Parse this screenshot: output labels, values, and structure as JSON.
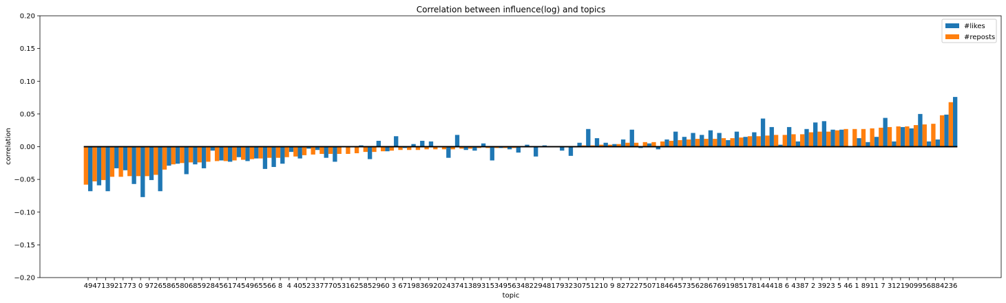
{
  "chart_data": {
    "type": "bar",
    "title": "Correlation between influence(log) and topics",
    "xlabel": "topic",
    "ylabel": "correlation",
    "ylim": [
      -0.2,
      0.2
    ],
    "yticks": [
      "0.20",
      "0.15",
      "0.10",
      "0.05",
      "0.00",
      "−0.05",
      "−0.10",
      "−0.15",
      "−0.20"
    ],
    "ytick_values": [
      0.2,
      0.15,
      0.1,
      0.05,
      0.0,
      -0.05,
      -0.1,
      -0.15,
      -0.2
    ],
    "legend_position": "top-right",
    "grid": false,
    "categories": [
      "49",
      "47",
      "13",
      "92",
      "17",
      "73",
      "0",
      "97",
      "26",
      "58",
      "65",
      "80",
      "68",
      "59",
      "28",
      "45",
      "61",
      "74",
      "54",
      "96",
      "55",
      "66",
      "8",
      "4",
      "40",
      "52",
      "33",
      "77",
      "70",
      "53",
      "16",
      "25",
      "85",
      "29",
      "60",
      "3",
      "67",
      "19",
      "83",
      "69",
      "20",
      "24",
      "37",
      "41",
      "38",
      "93",
      "15",
      "34",
      "95",
      "63",
      "48",
      "22",
      "94",
      "81",
      "79",
      "32",
      "30",
      "75",
      "12",
      "10",
      "9",
      "82",
      "72",
      "27",
      "50",
      "71",
      "84",
      "64",
      "57",
      "35",
      "62",
      "86",
      "76",
      "91",
      "98",
      "51",
      "78",
      "14",
      "44",
      "18",
      "6",
      "43",
      "87",
      "2",
      "39",
      "23",
      "5",
      "46",
      "1",
      "89",
      "11",
      "7",
      "31",
      "21",
      "90",
      "99",
      "56",
      "88",
      "42",
      "36"
    ],
    "series": [
      {
        "name": "#likes",
        "color": "#1f77b4",
        "values": [
          -0.068,
          -0.059,
          -0.068,
          -0.033,
          -0.036,
          -0.057,
          -0.077,
          -0.051,
          -0.068,
          -0.029,
          -0.026,
          -0.042,
          -0.027,
          -0.033,
          -0.006,
          -0.021,
          -0.023,
          -0.016,
          -0.022,
          -0.018,
          -0.034,
          -0.031,
          -0.026,
          -0.008,
          -0.018,
          -0.003,
          -0.005,
          -0.017,
          -0.023,
          0.0,
          0.0,
          0.002,
          -0.019,
          0.009,
          -0.007,
          0.016,
          -0.002,
          0.004,
          0.009,
          0.008,
          -0.001,
          -0.017,
          0.018,
          -0.005,
          -0.006,
          0.005,
          -0.021,
          -0.002,
          -0.004,
          -0.009,
          0.003,
          -0.015,
          0.002,
          0.001,
          -0.006,
          -0.014,
          0.006,
          0.027,
          0.013,
          0.006,
          0.004,
          0.011,
          0.026,
          -0.002,
          0.005,
          -0.004,
          0.011,
          0.023,
          0.015,
          0.021,
          0.018,
          0.025,
          0.021,
          0.01,
          0.023,
          0.015,
          0.022,
          0.043,
          0.03,
          0.003,
          0.03,
          0.008,
          0.027,
          0.037,
          0.039,
          0.026,
          0.026,
          0.0,
          0.013,
          0.007,
          0.015,
          0.044,
          0.008,
          0.03,
          0.028,
          0.05,
          0.008,
          0.011,
          0.049,
          0.076
        ]
      },
      {
        "name": "#reposts",
        "color": "#ff7f0e",
        "values": [
          -0.058,
          -0.053,
          -0.051,
          -0.046,
          -0.046,
          -0.045,
          -0.045,
          -0.045,
          -0.043,
          -0.035,
          -0.027,
          -0.025,
          -0.024,
          -0.024,
          -0.023,
          -0.022,
          -0.022,
          -0.021,
          -0.02,
          -0.019,
          -0.018,
          -0.017,
          -0.017,
          -0.016,
          -0.015,
          -0.013,
          -0.012,
          -0.011,
          -0.011,
          -0.011,
          -0.011,
          -0.01,
          -0.008,
          -0.008,
          -0.007,
          -0.006,
          -0.005,
          -0.005,
          -0.005,
          -0.004,
          -0.004,
          -0.004,
          -0.004,
          -0.003,
          -0.003,
          -0.002,
          -0.002,
          -0.002,
          -0.002,
          -0.002,
          -0.001,
          -0.001,
          0.0,
          0.0,
          0.0,
          0.0,
          0.001,
          0.002,
          0.002,
          0.003,
          0.003,
          0.004,
          0.006,
          0.006,
          0.007,
          0.007,
          0.008,
          0.009,
          0.01,
          0.011,
          0.012,
          0.012,
          0.012,
          0.013,
          0.013,
          0.014,
          0.016,
          0.016,
          0.017,
          0.018,
          0.018,
          0.019,
          0.019,
          0.022,
          0.023,
          0.023,
          0.025,
          0.027,
          0.027,
          0.027,
          0.028,
          0.029,
          0.03,
          0.031,
          0.031,
          0.033,
          0.034,
          0.035,
          0.048,
          0.068
        ]
      }
    ]
  }
}
